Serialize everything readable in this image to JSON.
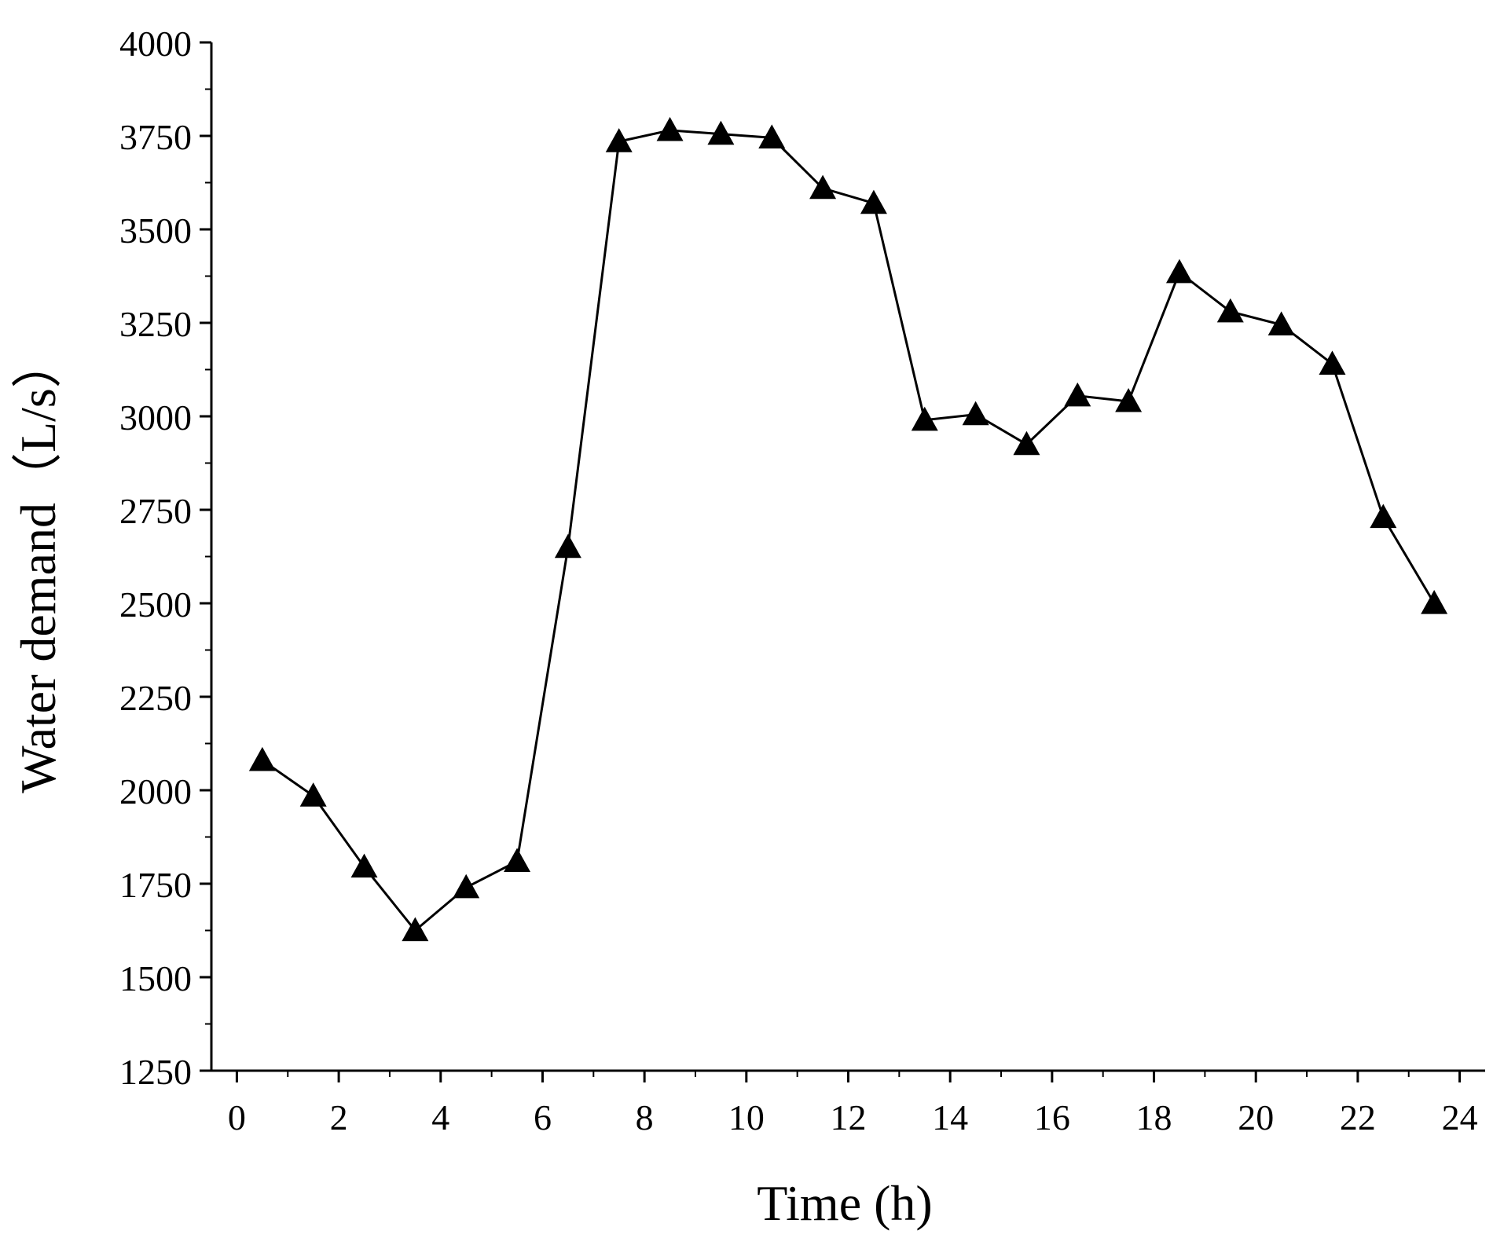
{
  "chart_data": {
    "type": "line",
    "title": "",
    "xlabel": "Time (h)",
    "ylabel": "Water demand（L/s）",
    "xlim": [
      -0.5,
      24.5
    ],
    "ylim": [
      1250,
      4000
    ],
    "x_ticks": [
      0,
      2,
      4,
      6,
      8,
      10,
      12,
      14,
      16,
      18,
      20,
      22,
      24
    ],
    "x_tick_labels": [
      "0",
      "2",
      "4",
      "6",
      "8",
      "10",
      "12",
      "14",
      "16",
      "18",
      "20",
      "22",
      "24"
    ],
    "y_ticks": [
      1250,
      1500,
      1750,
      2000,
      2250,
      2500,
      2750,
      3000,
      3250,
      3500,
      3750,
      4000
    ],
    "y_tick_labels": [
      "1250",
      "1500",
      "1750",
      "2000",
      "2250",
      "2500",
      "2750",
      "3000",
      "3250",
      "3500",
      "3750",
      "4000"
    ],
    "grid": false,
    "legend": "none",
    "marker": "triangle",
    "line_color": "#000000",
    "series": [
      {
        "name": "Water demand",
        "x": [
          0.5,
          1.5,
          2.5,
          3.5,
          4.5,
          5.5,
          6.5,
          7.5,
          8.5,
          9.5,
          10.5,
          11.5,
          12.5,
          13.5,
          14.5,
          15.5,
          16.5,
          17.5,
          18.5,
          19.5,
          20.5,
          21.5,
          22.5,
          23.5
        ],
        "values": [
          2080,
          1985,
          1795,
          1625,
          1740,
          1810,
          2650,
          3735,
          3765,
          3755,
          3745,
          3610,
          3570,
          2990,
          3005,
          2925,
          3055,
          3040,
          3385,
          3280,
          3245,
          3140,
          2730,
          2500
        ]
      }
    ]
  }
}
